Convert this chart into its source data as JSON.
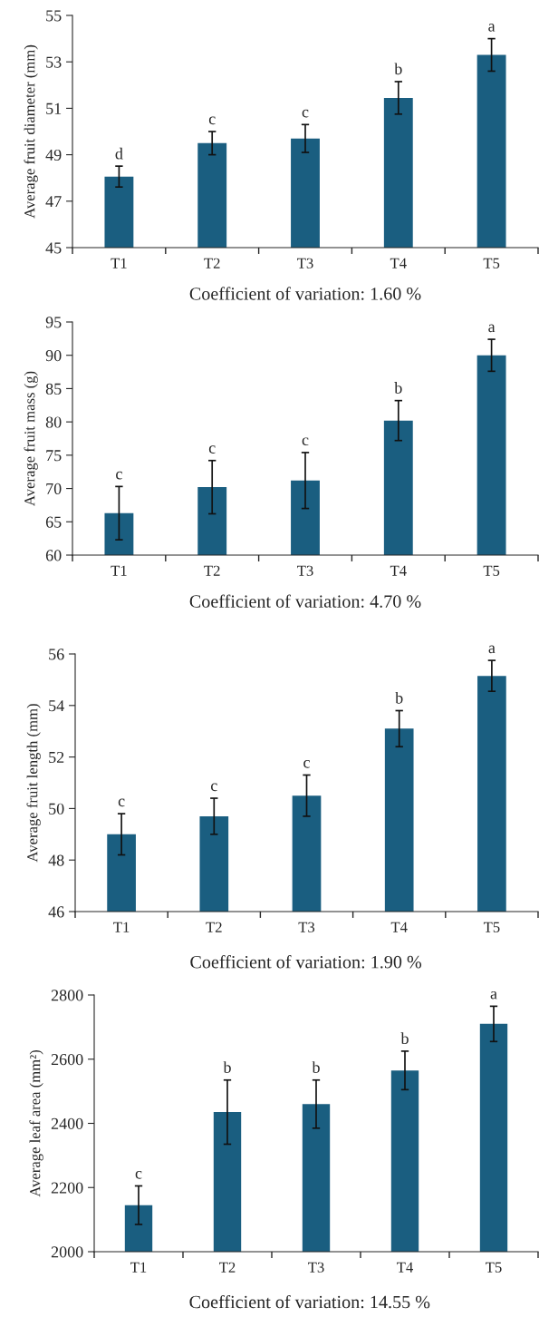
{
  "chart_data": [
    {
      "type": "bar",
      "categories": [
        "T1",
        "T2",
        "T3",
        "T4",
        "T5"
      ],
      "ylabel": "Average fruit diameter (mm)",
      "xlabel": "Coefficient of variation: 1.60 %",
      "color": "#1a5e80",
      "values": [
        48.06,
        49.5,
        49.7,
        51.45,
        53.3
      ],
      "errors": [
        0.45,
        0.5,
        0.6,
        0.7,
        0.7
      ],
      "ylim": [
        45,
        55
      ],
      "yticks": [
        45,
        47,
        49,
        51,
        53,
        55
      ],
      "grid": false,
      "annotations": [
        {
          "text": "d",
          "x": "T1",
          "y": 48.5
        },
        {
          "text": "c",
          "x": "T2",
          "y": 50.0
        },
        {
          "text": "c",
          "x": "T3",
          "y": 50.3
        },
        {
          "text": "b",
          "x": "T4",
          "y": 52.15
        },
        {
          "text": "a",
          "x": "T5",
          "y": 54.0
        }
      ]
    },
    {
      "type": "bar",
      "categories": [
        "T1",
        "T2",
        "T3",
        "T4",
        "T5"
      ],
      "ylabel": "Average fruit mass (g)",
      "xlabel": "Coefficient of variation: 4.70 %",
      "color": "#1a5e80",
      "values": [
        66.3,
        70.2,
        71.2,
        80.2,
        90.0
      ],
      "errors": [
        4.0,
        4.0,
        4.2,
        3.0,
        2.4
      ],
      "ylim": [
        60,
        95
      ],
      "yticks": [
        60,
        65,
        70,
        75,
        80,
        85,
        90,
        95
      ],
      "grid": false,
      "annotations": [
        {
          "text": "c",
          "x": "T1",
          "y": 70.3
        },
        {
          "text": "c",
          "x": "T2",
          "y": 74.2
        },
        {
          "text": "c",
          "x": "T3",
          "y": 75.4
        },
        {
          "text": "b",
          "x": "T4",
          "y": 83.2
        },
        {
          "text": "a",
          "x": "T5",
          "y": 92.4
        }
      ]
    },
    {
      "type": "bar",
      "categories": [
        "T1",
        "T2",
        "T3",
        "T4",
        "T5"
      ],
      "ylabel": "Average fruit length (mm)",
      "xlabel": "Coefficient of variation: 1.90 %",
      "color": "#1a5e80",
      "values": [
        49.0,
        49.7,
        50.5,
        53.1,
        55.15
      ],
      "errors": [
        0.8,
        0.7,
        0.8,
        0.7,
        0.6
      ],
      "ylim": [
        46,
        56
      ],
      "yticks": [
        46,
        48,
        50,
        52,
        54,
        56
      ],
      "grid": false,
      "annotations": [
        {
          "text": "c",
          "x": "T1",
          "y": 49.8
        },
        {
          "text": "c",
          "x": "T2",
          "y": 50.4
        },
        {
          "text": "c",
          "x": "T3",
          "y": 51.3
        },
        {
          "text": "b",
          "x": "T4",
          "y": 53.8
        },
        {
          "text": "a",
          "x": "T5",
          "y": 55.75
        }
      ]
    },
    {
      "type": "bar",
      "categories": [
        "T1",
        "T2",
        "T3",
        "T4",
        "T5"
      ],
      "ylabel": "Average leaf area (mm²)",
      "xlabel": "Coefficient of variation: 14.55 %",
      "color": "#1a5e80",
      "values": [
        2145,
        2435,
        2460,
        2565,
        2710
      ],
      "errors": [
        60,
        100,
        75,
        60,
        55
      ],
      "ylim": [
        2000,
        2800
      ],
      "yticks": [
        2000,
        2200,
        2400,
        2600,
        2800
      ],
      "grid": false,
      "annotations": [
        {
          "text": "c",
          "x": "T1",
          "y": 2205
        },
        {
          "text": "b",
          "x": "T2",
          "y": 2535
        },
        {
          "text": "b",
          "x": "T3",
          "y": 2535
        },
        {
          "text": "b",
          "x": "T4",
          "y": 2625
        },
        {
          "text": "a",
          "x": "T5",
          "y": 2765
        }
      ]
    }
  ]
}
